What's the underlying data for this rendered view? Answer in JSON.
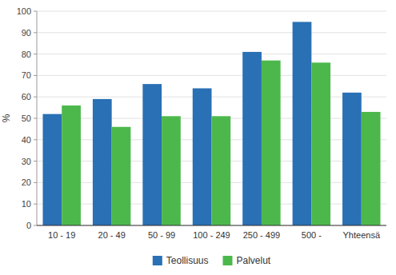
{
  "chart_data": {
    "type": "bar",
    "categories": [
      "10 - 19",
      "20 - 49",
      "50 - 99",
      "100 - 249",
      "250 - 499",
      "500 -",
      "Yhteensä"
    ],
    "series": [
      {
        "name": "Teollisuus",
        "color": "#2970b4",
        "values": [
          52,
          59,
          66,
          64,
          81,
          95,
          62
        ]
      },
      {
        "name": "Palvelut",
        "color": "#4cb84c",
        "values": [
          56,
          46,
          51,
          51,
          77,
          76,
          53
        ]
      }
    ],
    "ylabel": "%",
    "ylim": [
      0,
      100
    ],
    "yticks": [
      0,
      10,
      20,
      30,
      40,
      50,
      60,
      70,
      80,
      90,
      100
    ],
    "grid": true,
    "legend": "bottom"
  }
}
